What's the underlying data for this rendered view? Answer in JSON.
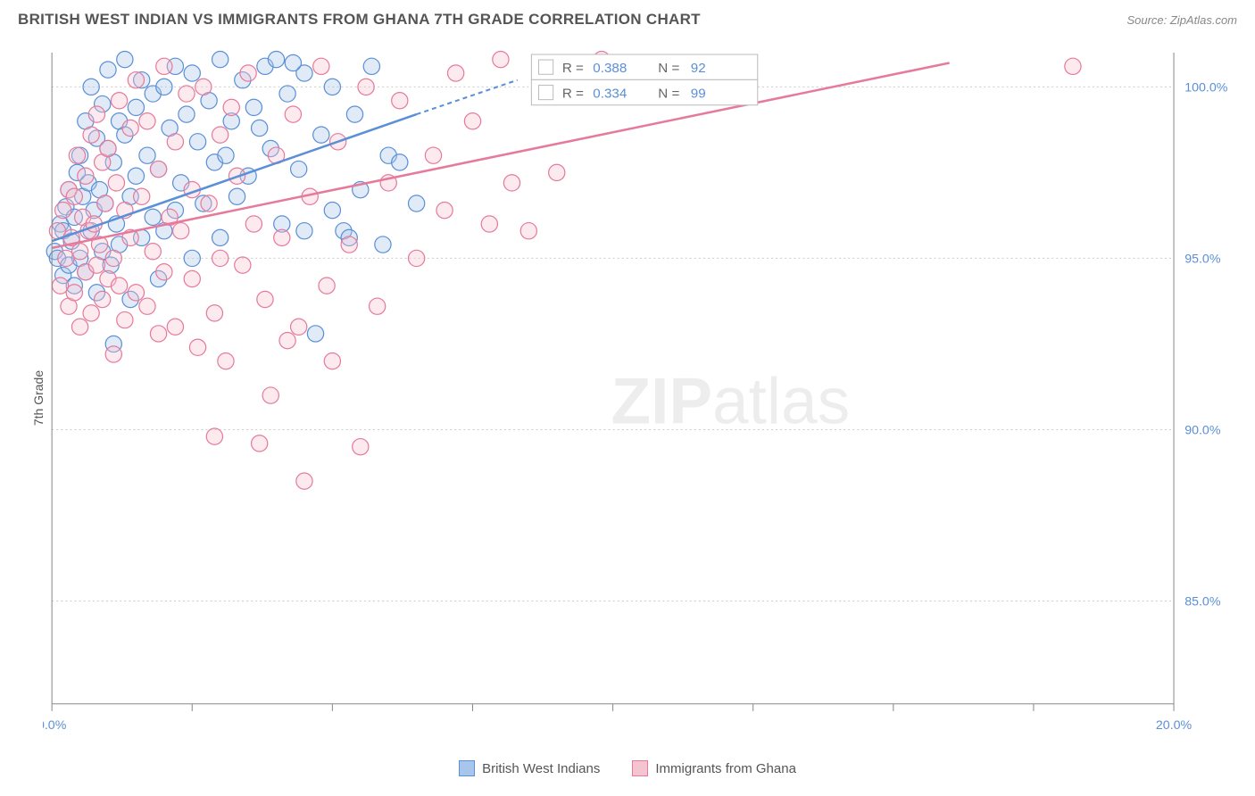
{
  "header": {
    "title": "BRITISH WEST INDIAN VS IMMIGRANTS FROM GHANA 7TH GRADE CORRELATION CHART",
    "source": "Source: ZipAtlas.com"
  },
  "ylabel": "7th Grade",
  "watermark": {
    "bold": "ZIP",
    "light": "atlas"
  },
  "chart": {
    "type": "scatter",
    "xlim": [
      0,
      20
    ],
    "ylim": [
      82,
      101
    ],
    "x_ticks": [
      0,
      2.5,
      5,
      7.5,
      10,
      12.5,
      15,
      17.5,
      20
    ],
    "x_tick_labels": {
      "0": "0.0%",
      "20": "20.0%"
    },
    "y_ticks": [
      85,
      90,
      95,
      100
    ],
    "y_tick_labels": {
      "85": "85.0%",
      "90": "90.0%",
      "95": "95.0%",
      "100": "100.0%"
    },
    "grid_color": "#cccccc",
    "background_color": "#ffffff",
    "axis_color": "#888888",
    "tick_label_color": "#5b8fd6",
    "marker_radius": 9,
    "series": [
      {
        "key": "bwi",
        "label": "British West Indians",
        "fill": "#a8c5ea",
        "stroke": "#5b8fd6",
        "R": "0.388",
        "N": "92",
        "trend": {
          "x0": 0,
          "y0": 95.5,
          "x1": 6.5,
          "y1": 99.2,
          "x2": 8.3,
          "y2": 100.2
        },
        "points": [
          [
            0.05,
            95.2
          ],
          [
            0.1,
            95.0
          ],
          [
            0.15,
            96.0
          ],
          [
            0.2,
            94.5
          ],
          [
            0.2,
            95.8
          ],
          [
            0.25,
            96.5
          ],
          [
            0.3,
            94.8
          ],
          [
            0.3,
            97.0
          ],
          [
            0.35,
            95.5
          ],
          [
            0.4,
            96.2
          ],
          [
            0.4,
            94.2
          ],
          [
            0.45,
            97.5
          ],
          [
            0.5,
            95.0
          ],
          [
            0.5,
            98.0
          ],
          [
            0.55,
            96.8
          ],
          [
            0.6,
            94.6
          ],
          [
            0.6,
            99.0
          ],
          [
            0.65,
            97.2
          ],
          [
            0.7,
            95.8
          ],
          [
            0.7,
            100.0
          ],
          [
            0.75,
            96.4
          ],
          [
            0.8,
            98.5
          ],
          [
            0.8,
            94.0
          ],
          [
            0.85,
            97.0
          ],
          [
            0.9,
            99.5
          ],
          [
            0.9,
            95.2
          ],
          [
            0.95,
            96.6
          ],
          [
            1.0,
            98.2
          ],
          [
            1.0,
            100.5
          ],
          [
            1.05,
            94.8
          ],
          [
            1.1,
            97.8
          ],
          [
            1.1,
            92.5
          ],
          [
            1.15,
            96.0
          ],
          [
            1.2,
            99.0
          ],
          [
            1.2,
            95.4
          ],
          [
            1.3,
            98.6
          ],
          [
            1.3,
            100.8
          ],
          [
            1.4,
            96.8
          ],
          [
            1.4,
            93.8
          ],
          [
            1.5,
            99.4
          ],
          [
            1.5,
            97.4
          ],
          [
            1.6,
            95.6
          ],
          [
            1.6,
            100.2
          ],
          [
            1.7,
            98.0
          ],
          [
            1.8,
            96.2
          ],
          [
            1.8,
            99.8
          ],
          [
            1.9,
            94.4
          ],
          [
            1.9,
            97.6
          ],
          [
            2.0,
            100.0
          ],
          [
            2.0,
            95.8
          ],
          [
            2.1,
            98.8
          ],
          [
            2.2,
            96.4
          ],
          [
            2.2,
            100.6
          ],
          [
            2.3,
            97.2
          ],
          [
            2.4,
            99.2
          ],
          [
            2.5,
            95.0
          ],
          [
            2.5,
            100.4
          ],
          [
            2.6,
            98.4
          ],
          [
            2.7,
            96.6
          ],
          [
            2.8,
            99.6
          ],
          [
            2.9,
            97.8
          ],
          [
            3.0,
            100.8
          ],
          [
            3.0,
            95.6
          ],
          [
            3.1,
            98.0
          ],
          [
            3.2,
            99.0
          ],
          [
            3.3,
            96.8
          ],
          [
            3.4,
            100.2
          ],
          [
            3.5,
            97.4
          ],
          [
            3.6,
            99.4
          ],
          [
            3.8,
            100.6
          ],
          [
            3.9,
            98.2
          ],
          [
            4.0,
            100.8
          ],
          [
            4.1,
            96.0
          ],
          [
            4.2,
            99.8
          ],
          [
            4.4,
            97.6
          ],
          [
            4.5,
            100.4
          ],
          [
            4.7,
            92.8
          ],
          [
            4.8,
            98.6
          ],
          [
            5.0,
            100.0
          ],
          [
            5.0,
            96.4
          ],
          [
            5.2,
            95.8
          ],
          [
            5.4,
            99.2
          ],
          [
            5.5,
            97.0
          ],
          [
            5.7,
            100.6
          ],
          [
            5.9,
            95.4
          ],
          [
            6.0,
            98.0
          ],
          [
            6.2,
            97.8
          ],
          [
            6.5,
            96.6
          ],
          [
            4.5,
            95.8
          ],
          [
            5.3,
            95.6
          ],
          [
            4.3,
            100.7
          ],
          [
            3.7,
            98.8
          ]
        ]
      },
      {
        "key": "ghana",
        "label": "Immigrants from Ghana",
        "fill": "#f5c4d1",
        "stroke": "#e67a9b",
        "R": "0.334",
        "N": "99",
        "trend": {
          "x0": 0,
          "y0": 95.3,
          "x1": 16.0,
          "y1": 100.7
        },
        "points": [
          [
            0.1,
            95.8
          ],
          [
            0.15,
            94.2
          ],
          [
            0.2,
            96.4
          ],
          [
            0.25,
            95.0
          ],
          [
            0.3,
            97.0
          ],
          [
            0.3,
            93.6
          ],
          [
            0.35,
            95.6
          ],
          [
            0.4,
            96.8
          ],
          [
            0.4,
            94.0
          ],
          [
            0.45,
            98.0
          ],
          [
            0.5,
            95.2
          ],
          [
            0.5,
            93.0
          ],
          [
            0.55,
            96.2
          ],
          [
            0.6,
            94.6
          ],
          [
            0.6,
            97.4
          ],
          [
            0.65,
            95.8
          ],
          [
            0.7,
            93.4
          ],
          [
            0.7,
            98.6
          ],
          [
            0.75,
            96.0
          ],
          [
            0.8,
            94.8
          ],
          [
            0.8,
            99.2
          ],
          [
            0.85,
            95.4
          ],
          [
            0.9,
            97.8
          ],
          [
            0.9,
            93.8
          ],
          [
            0.95,
            96.6
          ],
          [
            1.0,
            94.4
          ],
          [
            1.0,
            98.2
          ],
          [
            1.1,
            95.0
          ],
          [
            1.1,
            92.2
          ],
          [
            1.15,
            97.2
          ],
          [
            1.2,
            94.2
          ],
          [
            1.2,
            99.6
          ],
          [
            1.3,
            96.4
          ],
          [
            1.3,
            93.2
          ],
          [
            1.4,
            98.8
          ],
          [
            1.4,
            95.6
          ],
          [
            1.5,
            94.0
          ],
          [
            1.5,
            100.2
          ],
          [
            1.6,
            96.8
          ],
          [
            1.7,
            93.6
          ],
          [
            1.7,
            99.0
          ],
          [
            1.8,
            95.2
          ],
          [
            1.9,
            97.6
          ],
          [
            1.9,
            92.8
          ],
          [
            2.0,
            94.6
          ],
          [
            2.0,
            100.6
          ],
          [
            2.1,
            96.2
          ],
          [
            2.2,
            98.4
          ],
          [
            2.2,
            93.0
          ],
          [
            2.3,
            95.8
          ],
          [
            2.4,
            99.8
          ],
          [
            2.5,
            94.4
          ],
          [
            2.5,
            97.0
          ],
          [
            2.6,
            92.4
          ],
          [
            2.7,
            100.0
          ],
          [
            2.8,
            96.6
          ],
          [
            2.9,
            93.4
          ],
          [
            3.0,
            98.6
          ],
          [
            3.0,
            95.0
          ],
          [
            3.1,
            92.0
          ],
          [
            3.2,
            99.4
          ],
          [
            3.3,
            97.4
          ],
          [
            3.4,
            94.8
          ],
          [
            3.5,
            100.4
          ],
          [
            3.6,
            96.0
          ],
          [
            3.8,
            93.8
          ],
          [
            3.9,
            91.0
          ],
          [
            4.0,
            98.0
          ],
          [
            4.1,
            95.6
          ],
          [
            4.2,
            92.6
          ],
          [
            4.3,
            99.2
          ],
          [
            4.5,
            88.5
          ],
          [
            4.6,
            96.8
          ],
          [
            4.8,
            100.6
          ],
          [
            4.9,
            94.2
          ],
          [
            5.0,
            92.0
          ],
          [
            5.1,
            98.4
          ],
          [
            5.3,
            95.4
          ],
          [
            5.5,
            89.5
          ],
          [
            5.6,
            100.0
          ],
          [
            5.8,
            93.6
          ],
          [
            6.0,
            97.2
          ],
          [
            6.2,
            99.6
          ],
          [
            6.5,
            95.0
          ],
          [
            6.8,
            98.0
          ],
          [
            7.0,
            96.4
          ],
          [
            7.2,
            100.4
          ],
          [
            7.5,
            99.0
          ],
          [
            7.8,
            96.0
          ],
          [
            8.0,
            100.8
          ],
          [
            8.2,
            97.2
          ],
          [
            8.5,
            95.8
          ],
          [
            9.0,
            97.5
          ],
          [
            9.2,
            100.6
          ],
          [
            9.8,
            100.8
          ],
          [
            18.2,
            100.6
          ],
          [
            2.9,
            89.8
          ],
          [
            3.7,
            89.6
          ],
          [
            4.4,
            93.0
          ]
        ]
      }
    ]
  },
  "stat_box": {
    "R_label": "R =",
    "N_label": "N =",
    "label_color": "#666666",
    "value_color": "#5b8fd6"
  },
  "legend": {
    "items": [
      {
        "key": "bwi",
        "label": "British West Indians"
      },
      {
        "key": "ghana",
        "label": "Immigrants from Ghana"
      }
    ]
  }
}
